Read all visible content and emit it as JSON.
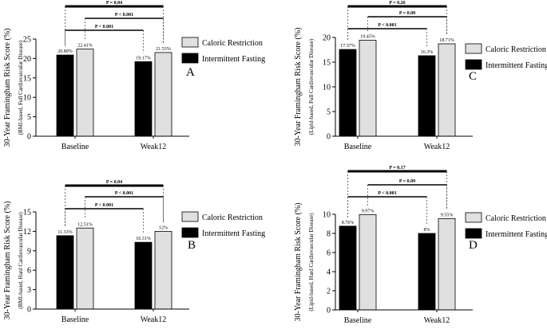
{
  "figure": {
    "categories": [
      "Baseline",
      "Weak12"
    ],
    "legend": [
      {
        "name": "Caloric Restriction",
        "color": "#e0e0e0"
      },
      {
        "name": "Intermittent Fasting",
        "color": "#000000"
      }
    ]
  },
  "chart_data": [
    {
      "type": "bar",
      "panel": "A",
      "ylabel": "30-Year Framingham Risk Score (%)",
      "ylabel_sub": "(BMI-based, Full Cardiovascular Disease)",
      "categories": [
        "Baseline",
        "Weak12"
      ],
      "ylim": [
        0,
        25
      ],
      "yticks": [
        0,
        5,
        10,
        15,
        20,
        25
      ],
      "series": [
        {
          "name": "Intermittent Fasting",
          "color": "#000000",
          "values": [
            20.89,
            19.17
          ],
          "labels": [
            "20.89%",
            "19.17%"
          ]
        },
        {
          "name": "Caloric Restriction",
          "color": "#e0e0e0",
          "values": [
            22.41,
            21.53
          ],
          "labels": [
            "22.41%",
            "21.53%"
          ]
        }
      ],
      "pvalues": [
        {
          "text": "P = 0.04",
          "from": "IF-Baseline",
          "to": "CR-Weak12"
        },
        {
          "text": "P < 0.001",
          "from": "CR-Baseline",
          "to": "CR-Weak12"
        },
        {
          "text": "P < 0.001",
          "from": "IF-Baseline",
          "to": "IF-Weak12"
        }
      ]
    },
    {
      "type": "bar",
      "panel": "B",
      "ylabel": "30-Year Framingham Risk Score (%)",
      "ylabel_sub": "(BMI-based, Hard Cardiovascular Disease)",
      "categories": [
        "Baseline",
        "Weak12"
      ],
      "ylim": [
        0,
        15
      ],
      "yticks": [
        0,
        3,
        6,
        9,
        12,
        15
      ],
      "series": [
        {
          "name": "Intermittent Fasting",
          "color": "#000000",
          "values": [
            11.33,
            10.31
          ],
          "labels": [
            "11.33%",
            "10.31%"
          ]
        },
        {
          "name": "Caloric Restriction",
          "color": "#e0e0e0",
          "values": [
            12.51,
            12
          ],
          "labels": [
            "12.51%",
            "12%"
          ]
        }
      ],
      "pvalues": [
        {
          "text": "P = 0.04",
          "from": "IF-Baseline",
          "to": "CR-Weak12"
        },
        {
          "text": "P < 0.001",
          "from": "CR-Baseline",
          "to": "CR-Weak12"
        },
        {
          "text": "P < 0.001",
          "from": "IF-Baseline",
          "to": "IF-Weak12"
        }
      ]
    },
    {
      "type": "bar",
      "panel": "C",
      "ylabel": "30-Year Framingham Risk Score (%)",
      "ylabel_sub": "(Lipid-based, Full Cardiovascular Disease)",
      "categories": [
        "Baseline",
        "Weak12"
      ],
      "ylim": [
        0,
        20
      ],
      "yticks": [
        0,
        5,
        10,
        15,
        20
      ],
      "series": [
        {
          "name": "Intermittent Fasting",
          "color": "#000000",
          "values": [
            17.57,
            16.3
          ],
          "labels": [
            "17.57%",
            "16.3%"
          ]
        },
        {
          "name": "Caloric Restriction",
          "color": "#e0e0e0",
          "values": [
            19.45,
            18.71
          ],
          "labels": [
            "19.45%",
            "18.71%"
          ]
        }
      ],
      "pvalues": [
        {
          "text": "P = 0.26",
          "from": "IF-Baseline",
          "to": "CR-Weak12"
        },
        {
          "text": "P = 0.08",
          "from": "CR-Baseline",
          "to": "CR-Weak12"
        },
        {
          "text": "P < 0.001",
          "from": "IF-Baseline",
          "to": "IF-Weak12"
        }
      ]
    },
    {
      "type": "bar",
      "panel": "D",
      "ylabel": "30-Year Framingham Risk Score (%)",
      "ylabel_sub": "(Lipid-based, Hard Cardiovascular Disease)",
      "categories": [
        "Baseline",
        "Weak12"
      ],
      "ylim": [
        0,
        10
      ],
      "yticks": [
        0,
        2,
        4,
        6,
        8,
        10
      ],
      "series": [
        {
          "name": "Intermittent Fasting",
          "color": "#000000",
          "values": [
            8.76,
            8
          ],
          "labels": [
            "8.76%",
            "8%"
          ]
        },
        {
          "name": "Caloric Restriction",
          "color": "#e0e0e0",
          "values": [
            9.97,
            9.55
          ],
          "labels": [
            "9.97%",
            "9.55%"
          ]
        }
      ],
      "pvalues": [
        {
          "text": "P = 0.17",
          "from": "IF-Baseline",
          "to": "CR-Weak12"
        },
        {
          "text": "P = 0.09",
          "from": "CR-Baseline",
          "to": "CR-Weak12"
        },
        {
          "text": "P < 0.001",
          "from": "IF-Baseline",
          "to": "IF-Weak12"
        }
      ]
    }
  ]
}
